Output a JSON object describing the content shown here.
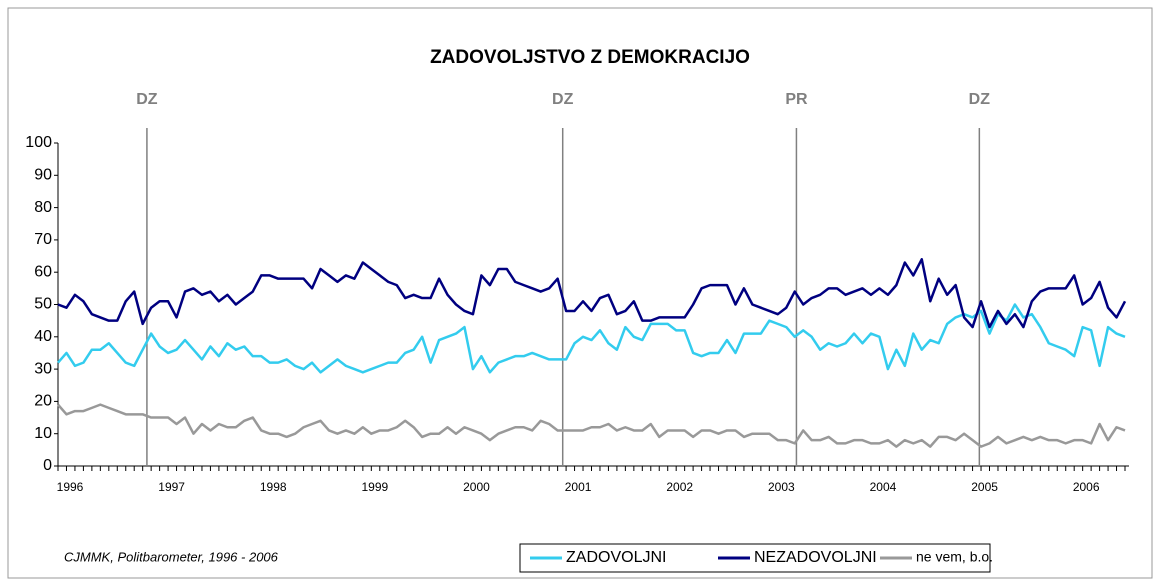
{
  "chart_data": {
    "type": "line",
    "title": "ZADOVOLJSTVO Z DEMOKRACIJO",
    "note": "CJMMK, Politbarometer, 1996 - 2006",
    "categories": [
      "1996",
      null,
      null,
      null,
      null,
      null,
      null,
      null,
      null,
      null,
      null,
      null,
      "1997",
      null,
      null,
      null,
      null,
      null,
      null,
      null,
      null,
      null,
      null,
      null,
      "1998",
      null,
      null,
      null,
      null,
      null,
      null,
      null,
      null,
      null,
      null,
      null,
      "1999",
      null,
      null,
      null,
      null,
      null,
      null,
      null,
      null,
      null,
      null,
      null,
      "2000",
      null,
      null,
      null,
      null,
      null,
      null,
      null,
      null,
      null,
      null,
      null,
      "2001",
      null,
      null,
      null,
      null,
      null,
      null,
      null,
      null,
      null,
      null,
      null,
      "2002",
      null,
      null,
      null,
      null,
      null,
      null,
      null,
      null,
      null,
      null,
      null,
      "2003",
      null,
      null,
      null,
      null,
      null,
      null,
      null,
      null,
      null,
      null,
      null,
      "2004",
      null,
      null,
      null,
      null,
      null,
      null,
      null,
      null,
      null,
      null,
      null,
      "2005",
      null,
      null,
      null,
      null,
      null,
      null,
      null,
      null,
      null,
      null,
      null,
      "2006",
      null,
      null,
      null,
      null,
      null,
      null
    ],
    "series": [
      {
        "name": "ZADOVOLJNI",
        "color": "#33ccee",
        "values": [
          32,
          35,
          31,
          32,
          36,
          36,
          38,
          35,
          32,
          31,
          36,
          41,
          37,
          35,
          36,
          39,
          36,
          33,
          37,
          34,
          38,
          36,
          37,
          34,
          34,
          32,
          32,
          33,
          31,
          30,
          32,
          29,
          31,
          33,
          31,
          30,
          29,
          30,
          31,
          32,
          32,
          35,
          36,
          40,
          32,
          39,
          40,
          41,
          43,
          30,
          34,
          29,
          32,
          33,
          34,
          34,
          35,
          34,
          33,
          33,
          33,
          38,
          40,
          39,
          42,
          38,
          36,
          43,
          40,
          39,
          44,
          44,
          44,
          42,
          42,
          35,
          34,
          35,
          35,
          39,
          35,
          41,
          41,
          41,
          45,
          44,
          43,
          40,
          42,
          40,
          36,
          38,
          37,
          38,
          41,
          38,
          41,
          40,
          30,
          36,
          31,
          41,
          36,
          39,
          38,
          44,
          46,
          47,
          46,
          48,
          41,
          47,
          45,
          50,
          46,
          47,
          43,
          38,
          37,
          36,
          34,
          43,
          42,
          31,
          43,
          41,
          40
        ]
      },
      {
        "name": "NEZADOVOLJNI",
        "color": "#000080",
        "values": [
          50,
          49,
          53,
          51,
          47,
          46,
          45,
          45,
          51,
          54,
          44,
          49,
          51,
          51,
          46,
          54,
          55,
          53,
          54,
          51,
          53,
          50,
          52,
          54,
          59,
          59,
          58,
          58,
          58,
          58,
          55,
          61,
          59,
          57,
          59,
          58,
          63,
          61,
          59,
          57,
          56,
          52,
          53,
          52,
          52,
          58,
          53,
          50,
          48,
          47,
          59,
          56,
          61,
          61,
          57,
          56,
          55,
          54,
          55,
          58,
          48,
          48,
          51,
          48,
          52,
          53,
          47,
          48,
          51,
          45,
          45,
          46,
          46,
          46,
          46,
          50,
          55,
          56,
          56,
          56,
          50,
          55,
          50,
          49,
          48,
          47,
          49,
          54,
          50,
          52,
          53,
          55,
          55,
          53,
          54,
          55,
          53,
          55,
          53,
          56,
          63,
          59,
          64,
          51,
          58,
          53,
          56,
          46,
          43,
          51,
          43,
          48,
          44,
          47,
          43,
          51,
          54,
          55,
          55,
          55,
          59,
          50,
          52,
          57,
          49,
          46,
          51
        ]
      },
      {
        "name": "ne vem, b.o.",
        "color": "#999999",
        "values": [
          19,
          16,
          17,
          17,
          18,
          19,
          18,
          17,
          16,
          16,
          16,
          15,
          15,
          15,
          13,
          15,
          10,
          13,
          11,
          13,
          12,
          12,
          14,
          15,
          11,
          10,
          10,
          9,
          10,
          12,
          13,
          14,
          11,
          10,
          11,
          10,
          12,
          10,
          11,
          11,
          12,
          14,
          12,
          9,
          10,
          10,
          12,
          10,
          12,
          11,
          10,
          8,
          10,
          11,
          12,
          12,
          11,
          14,
          13,
          11,
          11,
          11,
          11,
          12,
          12,
          13,
          11,
          12,
          11,
          11,
          13,
          9,
          11,
          11,
          11,
          9,
          11,
          11,
          10,
          11,
          11,
          9,
          10,
          10,
          10,
          8,
          8,
          7,
          11,
          8,
          8,
          9,
          7,
          7,
          8,
          8,
          7,
          7,
          8,
          6,
          8,
          7,
          8,
          6,
          9,
          9,
          8,
          10,
          8,
          6,
          7,
          9,
          7,
          8,
          9,
          8,
          9,
          8,
          8,
          7,
          8,
          8,
          7,
          13,
          8,
          12,
          11
        ]
      }
    ],
    "events": [
      {
        "label": "DZ",
        "at": 10.5
      },
      {
        "label": "DZ",
        "at": 59.6
      },
      {
        "label": "PR",
        "at": 87.2
      },
      {
        "label": "DZ",
        "at": 108.8
      }
    ],
    "ylim": [
      0,
      100
    ],
    "yticks": [
      0,
      10,
      20,
      30,
      40,
      50,
      60,
      70,
      80,
      90,
      100
    ],
    "grid": false
  }
}
